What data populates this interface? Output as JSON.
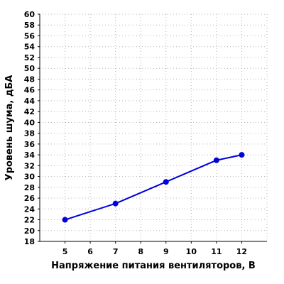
{
  "chart_data": {
    "type": "line",
    "xlabel": "Напряжение питания вентиляторов, В",
    "ylabel": "Уровень шума, дБА",
    "xlim": [
      4,
      13
    ],
    "ylim": [
      18,
      60
    ],
    "x_ticks": [
      "5",
      "6",
      "7",
      "8",
      "9",
      "10",
      "11",
      "12"
    ],
    "y_ticks": [
      "18",
      "20",
      "22",
      "24",
      "26",
      "28",
      "30",
      "32",
      "34",
      "36",
      "38",
      "40",
      "42",
      "44",
      "46",
      "48",
      "50",
      "52",
      "54",
      "56",
      "58",
      "60"
    ],
    "grid": true,
    "series": [
      {
        "color": "#0000dd",
        "x": [
          5,
          7,
          9,
          11,
          12
        ],
        "y": [
          22,
          25,
          29,
          33,
          34
        ]
      }
    ]
  }
}
